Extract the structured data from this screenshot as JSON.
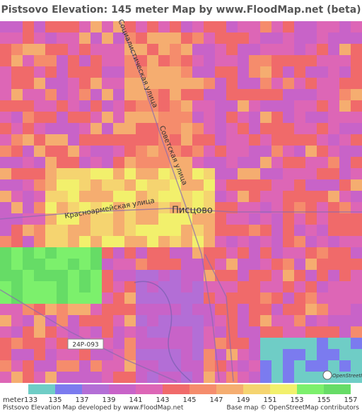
{
  "header": {
    "title": "Pistsovo Elevation: 145 meter Map by www.FloodMap.net (beta)"
  },
  "map": {
    "labels": {
      "street_1": "Социалистическая улица",
      "street_2": "Советская улица",
      "street_3": "Красноармейская улица",
      "town": "Писцово",
      "road": "24Р-093",
      "osm": "OpenStreetMap"
    }
  },
  "legend": {
    "unit": "meter",
    "colors": [
      "#6fcdc6",
      "#7b7bef",
      "#b36ed6",
      "#c863c8",
      "#dd66b6",
      "#f06a6a",
      "#f58c6c",
      "#f5ad70",
      "#f5d470",
      "#f2f06c",
      "#7cf06c",
      "#66dc66"
    ],
    "ticks": [
      133,
      135,
      137,
      139,
      141,
      143,
      145,
      147,
      149,
      151,
      153,
      155,
      157
    ]
  },
  "footer": {
    "left": "Pistsovo Elevation Map developed by www.FloodMap.net",
    "right": "Base map © OpenStreetMap contributors"
  }
}
